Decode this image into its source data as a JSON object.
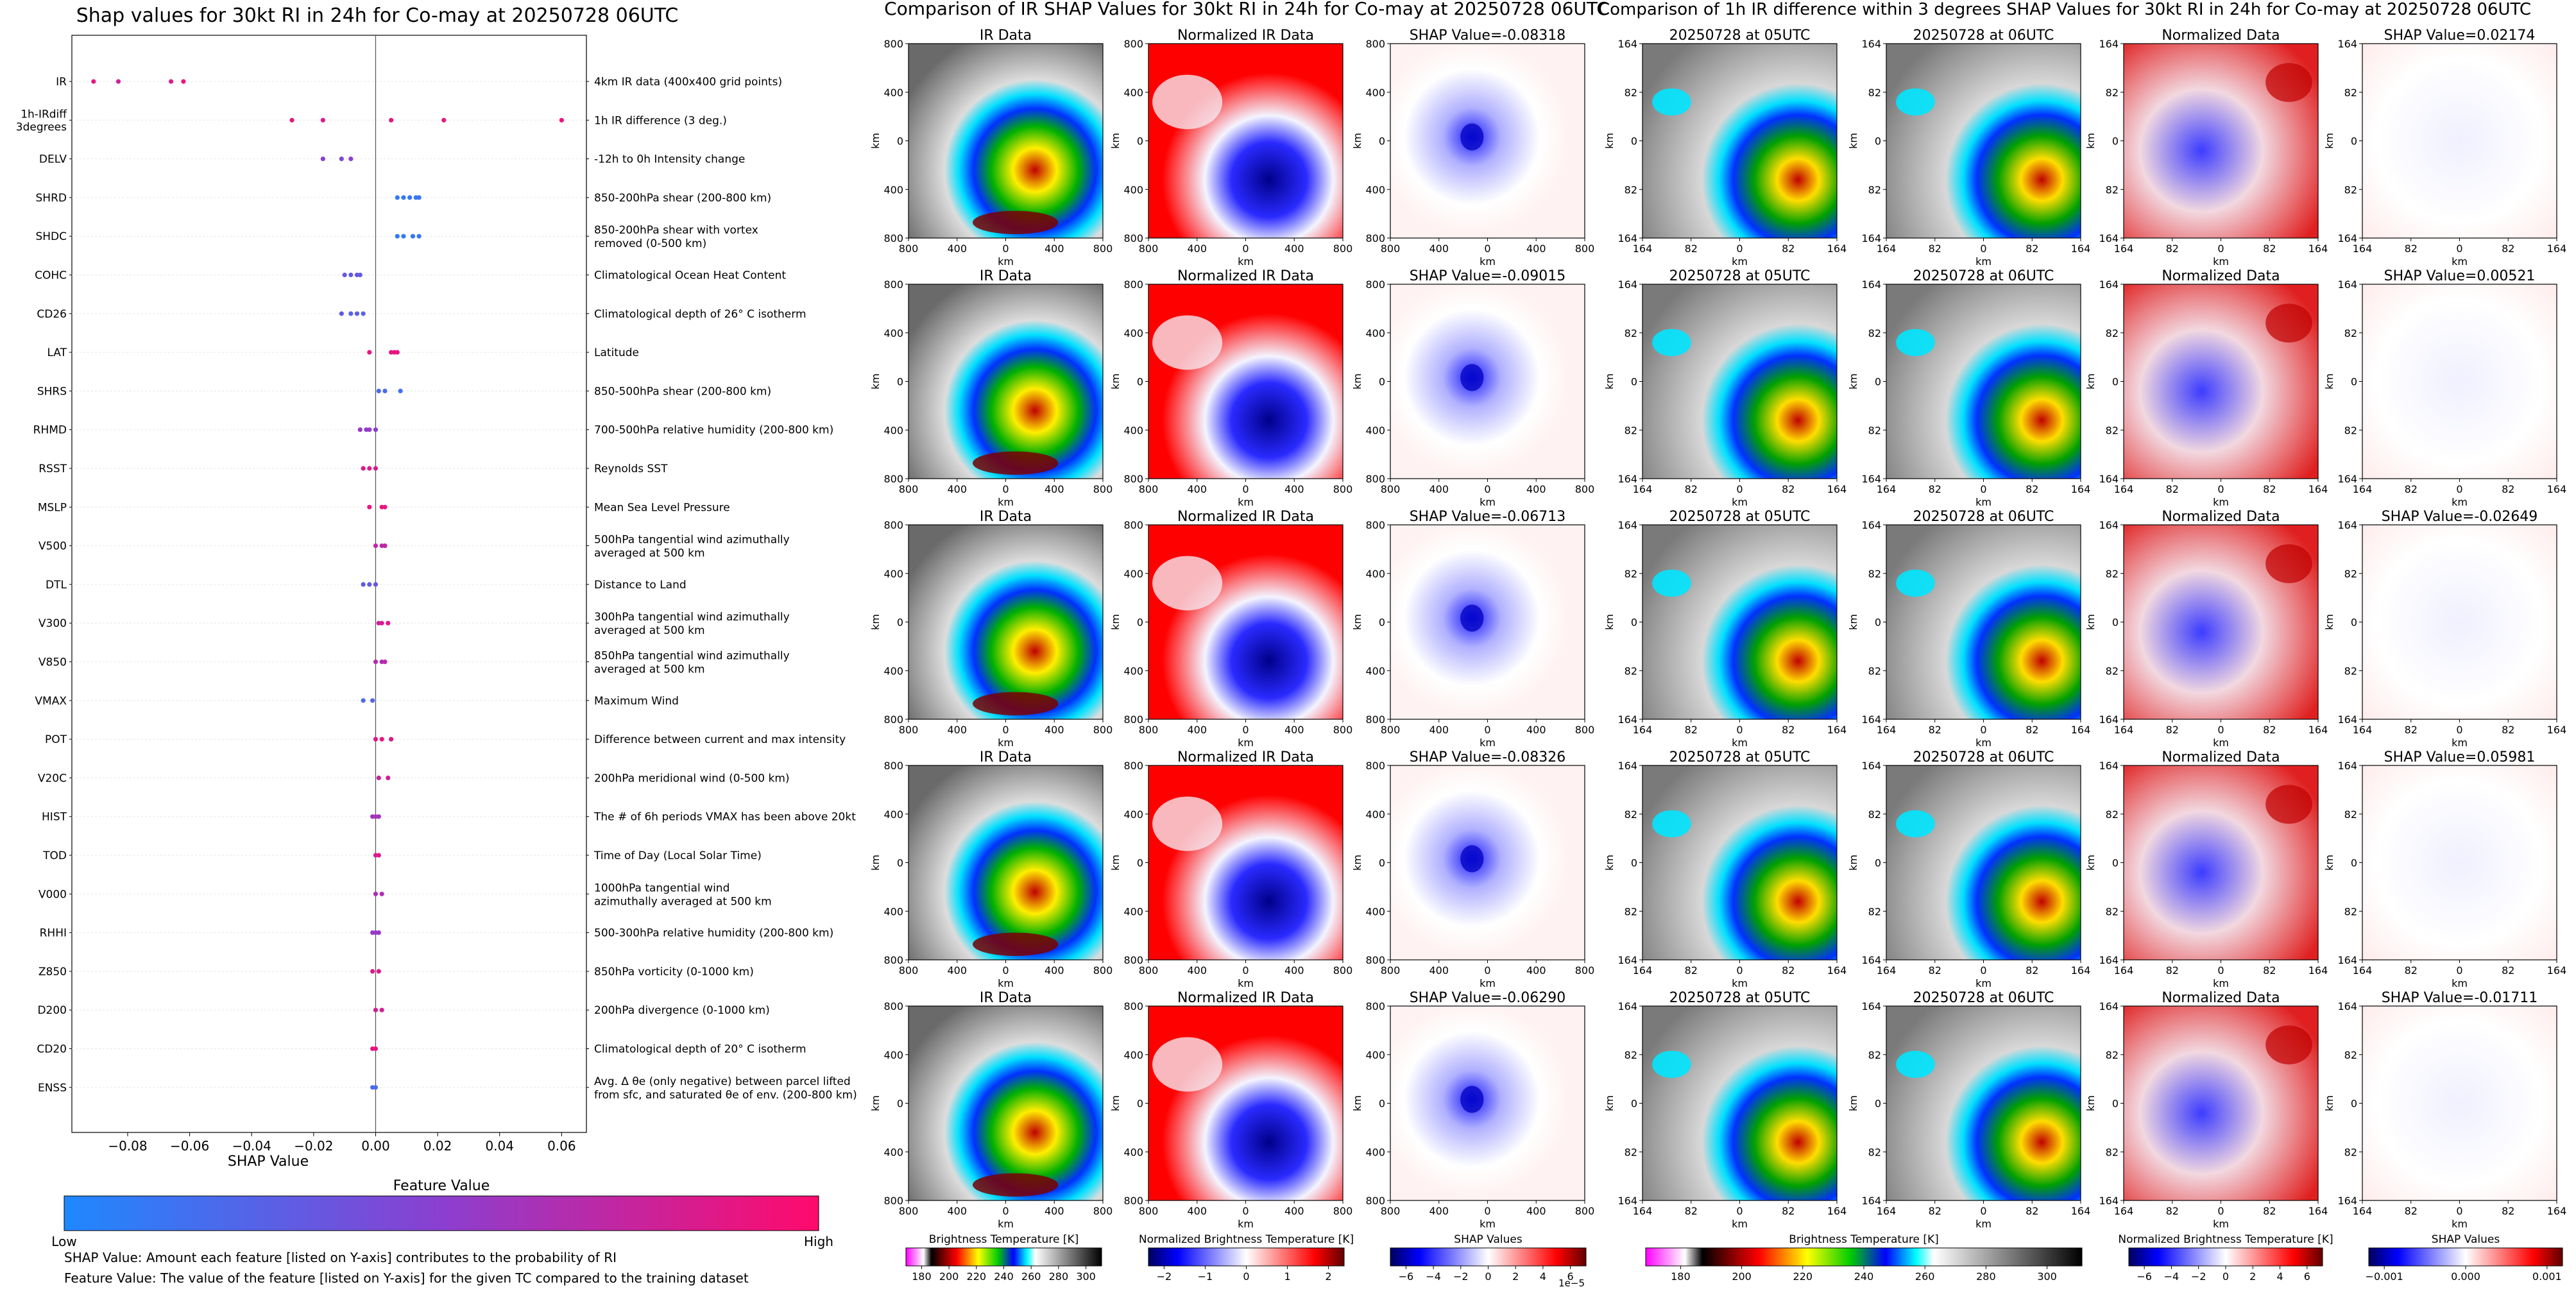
{
  "left_panel": {
    "title": "Shap values for 30kt RI in 24h for Co-may at 20250728 06UTC",
    "xlabel": "SHAP Value",
    "colorbar_title": "Feature Value",
    "colorbar_low": "Low",
    "colorbar_high": "High",
    "note1": "SHAP Value: Amount each feature [listed on Y-axis] contributes to the probability of RI",
    "note2": "Feature Value: The value of the feature [listed on Y-axis] for the given TC compared to the training dataset",
    "colors": {
      "low": "#1e88ff",
      "mid": "#8b3fd0",
      "high": "#ff0a6c"
    }
  },
  "middle_panel": {
    "title": "Comparison of IR SHAP Values for 30kt RI in 24h for Co-may at 20250728 06UTC",
    "col_titles": [
      "IR Data",
      "Normalized IR Data"
    ],
    "shap_titles": [
      "SHAP Value=-0.08318",
      "SHAP Value=-0.09015",
      "SHAP Value=-0.06713",
      "SHAP Value=-0.08326",
      "SHAP Value=-0.06290"
    ],
    "ticks": [
      "800",
      "400",
      "0",
      "400",
      "800"
    ],
    "axis_label": "km",
    "cbar1_label": "Brightness Temperature [K]",
    "cbar1_ticks": [
      "180",
      "200",
      "220",
      "240",
      "260",
      "280",
      "300"
    ],
    "cbar2_label": "Normalized Brightness Temperature [K]",
    "cbar2_ticks": [
      "−2",
      "−1",
      "0",
      "1",
      "2"
    ],
    "cbar3_label": "SHAP Values",
    "cbar3_ticks": [
      "−6",
      "−4",
      "−2",
      "0",
      "2",
      "4",
      "6"
    ],
    "cbar3_exp": "1e−5"
  },
  "right_panel": {
    "title": "Comparison of 1h IR difference within 3 degrees SHAP Values for 30kt RI in 24h for Co-may at 20250728 06UTC",
    "col_titles": [
      "20250728 at 05UTC",
      "20250728 at 06UTC",
      "Normalized Data"
    ],
    "shap_titles": [
      "SHAP Value=0.02174",
      "SHAP Value=0.00521",
      "SHAP Value=-0.02649",
      "SHAP Value=0.05981",
      "SHAP Value=-0.01711"
    ],
    "ticks": [
      "164",
      "82",
      "0",
      "82",
      "164"
    ],
    "axis_label": "km",
    "cbar1_label": "Brightness Temperature [K]",
    "cbar1_ticks": [
      "180",
      "200",
      "220",
      "240",
      "260",
      "280",
      "300"
    ],
    "cbar2_label": "Normalized Brightness Temperature [K]",
    "cbar2_ticks": [
      "−6",
      "−4",
      "−2",
      "0",
      "2",
      "4",
      "6"
    ],
    "cbar3_label": "SHAP Values",
    "cbar3_ticks": [
      "−0.001",
      "0.000",
      "0.001"
    ]
  },
  "chart_data": {
    "type": "scatter",
    "title": "Shap values for 30kt RI in 24h for Co-may at 20250728 06UTC",
    "xlabel": "SHAP Value",
    "ylabel": "",
    "xlim": [
      -0.098,
      0.068
    ],
    "xticks": [
      -0.08,
      -0.06,
      -0.04,
      -0.02,
      0.0,
      0.02,
      0.04,
      0.06
    ],
    "xtick_labels": [
      "−0.08",
      "−0.06",
      "−0.04",
      "−0.02",
      "0.00",
      "0.02",
      "0.04",
      "0.06"
    ],
    "features": [
      {
        "name": "IR",
        "desc": "4km IR data (400x400 grid points)",
        "points": [
          [
            -0.091,
            0.88
          ],
          [
            -0.083,
            0.8
          ],
          [
            -0.066,
            0.85
          ],
          [
            -0.062,
            0.9
          ]
        ]
      },
      {
        "name": "1h-IRdiff 3degrees",
        "desc": "1h IR difference (3 deg.)",
        "points": [
          [
            -0.027,
            0.9
          ],
          [
            -0.017,
            0.85
          ],
          [
            0.005,
            0.88
          ],
          [
            0.022,
            0.9
          ],
          [
            0.06,
            0.95
          ]
        ]
      },
      {
        "name": "DELV",
        "desc": "-12h to 0h Intensity change",
        "points": [
          [
            -0.017,
            0.5
          ],
          [
            -0.011,
            0.45
          ],
          [
            -0.008,
            0.5
          ]
        ]
      },
      {
        "name": "SHRD",
        "desc": "850-200hPa shear (200-800 km)",
        "points": [
          [
            0.007,
            0.1
          ],
          [
            0.009,
            0.1
          ],
          [
            0.011,
            0.12
          ],
          [
            0.013,
            0.1
          ],
          [
            0.014,
            0.15
          ]
        ]
      },
      {
        "name": "SHDC",
        "desc": "850-200hPa shear with vortex removed (0-500 km)",
        "points": [
          [
            0.007,
            0.1
          ],
          [
            0.009,
            0.1
          ],
          [
            0.012,
            0.12
          ],
          [
            0.014,
            0.12
          ]
        ]
      },
      {
        "name": "COHC",
        "desc": "Climatological Ocean Heat Content",
        "points": [
          [
            -0.01,
            0.35
          ],
          [
            -0.008,
            0.3
          ],
          [
            -0.006,
            0.35
          ],
          [
            -0.005,
            0.3
          ]
        ]
      },
      {
        "name": "CD26",
        "desc": "Climatological depth of 26° C isotherm",
        "points": [
          [
            -0.011,
            0.3
          ],
          [
            -0.008,
            0.25
          ],
          [
            -0.006,
            0.3
          ],
          [
            -0.004,
            0.25
          ]
        ]
      },
      {
        "name": "LAT",
        "desc": "Latitude",
        "points": [
          [
            -0.002,
            0.9
          ],
          [
            0.005,
            0.9
          ],
          [
            0.006,
            0.92
          ],
          [
            0.007,
            0.88
          ]
        ]
      },
      {
        "name": "SHRS",
        "desc": "850-500hPa shear (200-800 km)",
        "points": [
          [
            0.001,
            0.2
          ],
          [
            0.003,
            0.2
          ],
          [
            0.008,
            0.15
          ]
        ]
      },
      {
        "name": "RHMD",
        "desc": "700-500hPa relative humidity (200-800 km)",
        "points": [
          [
            -0.005,
            0.55
          ],
          [
            -0.003,
            0.5
          ],
          [
            -0.002,
            0.55
          ],
          [
            0.0,
            0.5
          ]
        ]
      },
      {
        "name": "RSST",
        "desc": "Reynolds SST",
        "points": [
          [
            -0.004,
            0.85
          ],
          [
            -0.002,
            0.85
          ],
          [
            0.0,
            0.85
          ]
        ]
      },
      {
        "name": "MSLP",
        "desc": "Mean Sea Level Pressure",
        "points": [
          [
            -0.002,
            0.9
          ],
          [
            0.002,
            0.9
          ],
          [
            0.003,
            0.9
          ]
        ]
      },
      {
        "name": "V500",
        "desc": "500hPa tangential wind azimuthally averaged at 500 km",
        "points": [
          [
            0.0,
            0.75
          ],
          [
            0.002,
            0.7
          ],
          [
            0.003,
            0.75
          ]
        ]
      },
      {
        "name": "DTL",
        "desc": "Distance to Land",
        "points": [
          [
            -0.004,
            0.3
          ],
          [
            -0.002,
            0.3
          ],
          [
            0.0,
            0.35
          ]
        ]
      },
      {
        "name": "V300",
        "desc": "300hPa tangential wind azimuthally averaged at 500 km",
        "points": [
          [
            0.001,
            0.8
          ],
          [
            0.002,
            0.8
          ],
          [
            0.004,
            0.85
          ]
        ]
      },
      {
        "name": "V850",
        "desc": "850hPa tangential wind azimuthally averaged at 500 km",
        "points": [
          [
            0.0,
            0.7
          ],
          [
            0.002,
            0.65
          ],
          [
            0.003,
            0.7
          ]
        ]
      },
      {
        "name": "VMAX",
        "desc": "Maximum Wind",
        "points": [
          [
            -0.004,
            0.2
          ],
          [
            -0.001,
            0.25
          ]
        ]
      },
      {
        "name": "POT",
        "desc": "Difference between current and max intensity",
        "points": [
          [
            0.0,
            0.85
          ],
          [
            0.002,
            0.9
          ],
          [
            0.005,
            0.85
          ]
        ]
      },
      {
        "name": "V20C",
        "desc": "200hPa meridional wind (0-500 km)",
        "points": [
          [
            0.001,
            0.75
          ],
          [
            0.004,
            0.8
          ]
        ]
      },
      {
        "name": "HIST",
        "desc": "The # of 6h periods VMAX has been above 20kt",
        "points": [
          [
            -0.001,
            0.6
          ],
          [
            0.0,
            0.6
          ],
          [
            0.001,
            0.6
          ]
        ]
      },
      {
        "name": "TOD",
        "desc": "Time of Day (Local Solar Time)",
        "points": [
          [
            0.0,
            0.85
          ],
          [
            0.001,
            0.85
          ]
        ]
      },
      {
        "name": "V000",
        "desc": "1000hPa tangential wind azimuthally averaged at 500 km",
        "points": [
          [
            0.0,
            0.65
          ],
          [
            0.002,
            0.65
          ]
        ]
      },
      {
        "name": "RHHI",
        "desc": "500-300hPa relative humidity (200-800 km)",
        "points": [
          [
            -0.001,
            0.55
          ],
          [
            0.0,
            0.55
          ],
          [
            0.001,
            0.55
          ]
        ]
      },
      {
        "name": "Z850",
        "desc": "850hPa vorticity (0-1000 km)",
        "points": [
          [
            -0.001,
            0.85
          ],
          [
            0.001,
            0.85
          ]
        ]
      },
      {
        "name": "D200",
        "desc": "200hPa divergence (0-1000 km)",
        "points": [
          [
            0.0,
            0.8
          ],
          [
            0.002,
            0.8
          ]
        ]
      },
      {
        "name": "CD20",
        "desc": "Climatological depth of 20° C isotherm",
        "points": [
          [
            -0.001,
            0.9
          ],
          [
            0.0,
            0.9
          ]
        ]
      },
      {
        "name": "ENSS",
        "desc": "Avg. Δ θe (only negative) between parcel lifted from sfc, and saturated θe of env. (200-800 km)",
        "points": [
          [
            -0.001,
            0.2
          ],
          [
            0.0,
            0.2
          ]
        ]
      }
    ]
  }
}
